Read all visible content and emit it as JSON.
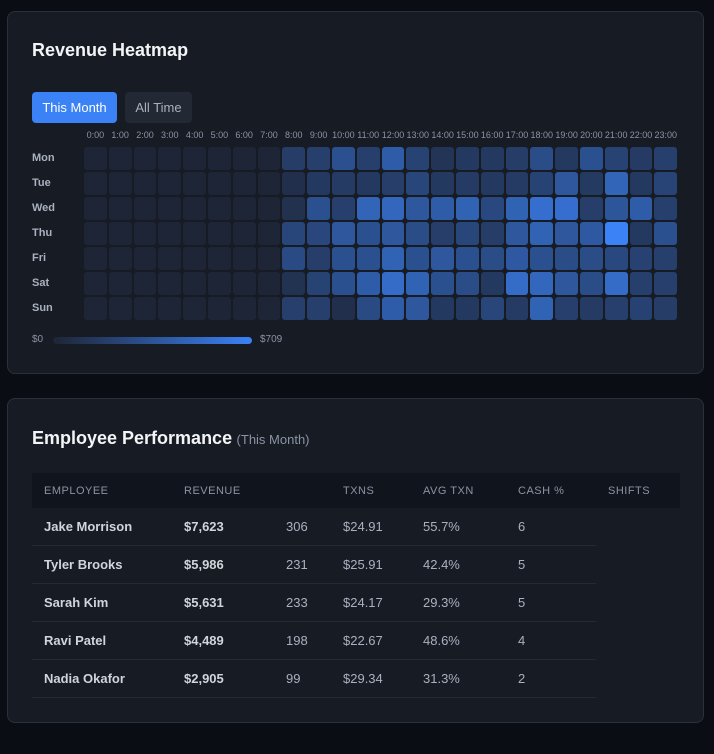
{
  "chart_data": {
    "type": "heatmap",
    "title": "Revenue Heatmap",
    "x": [
      "0:00",
      "1:00",
      "2:00",
      "3:00",
      "4:00",
      "5:00",
      "6:00",
      "7:00",
      "8:00",
      "9:00",
      "10:00",
      "11:00",
      "12:00",
      "13:00",
      "14:00",
      "15:00",
      "16:00",
      "17:00",
      "18:00",
      "19:00",
      "20:00",
      "21:00",
      "22:00",
      "23:00"
    ],
    "categories": [
      "Mon",
      "Tue",
      "Wed",
      "Thu",
      "Fri",
      "Sat",
      "Sun"
    ],
    "values": [
      [
        0,
        0,
        0,
        0,
        0,
        0,
        0,
        0,
        180,
        200,
        330,
        200,
        420,
        230,
        120,
        150,
        150,
        180,
        300,
        150,
        330,
        230,
        170,
        200
      ],
      [
        0,
        0,
        0,
        0,
        0,
        0,
        0,
        0,
        80,
        150,
        170,
        150,
        190,
        250,
        150,
        170,
        150,
        170,
        230,
        380,
        160,
        480,
        150,
        240
      ],
      [
        0,
        0,
        0,
        0,
        0,
        0,
        0,
        0,
        90,
        330,
        200,
        480,
        500,
        380,
        420,
        470,
        270,
        470,
        560,
        560,
        190,
        370,
        420,
        200
      ],
      [
        0,
        0,
        0,
        0,
        0,
        0,
        0,
        0,
        250,
        260,
        380,
        330,
        380,
        300,
        190,
        250,
        180,
        380,
        470,
        380,
        400,
        709,
        150,
        330
      ],
      [
        0,
        0,
        0,
        0,
        0,
        0,
        0,
        0,
        280,
        190,
        330,
        330,
        470,
        330,
        380,
        330,
        300,
        400,
        330,
        300,
        300,
        270,
        220,
        200
      ],
      [
        0,
        0,
        0,
        0,
        0,
        0,
        0,
        0,
        100,
        230,
        330,
        420,
        540,
        470,
        330,
        300,
        150,
        540,
        500,
        380,
        300,
        540,
        200,
        200
      ],
      [
        0,
        0,
        0,
        0,
        0,
        0,
        0,
        0,
        200,
        200,
        80,
        280,
        420,
        380,
        150,
        150,
        250,
        170,
        470,
        200,
        170,
        200,
        220,
        180
      ]
    ],
    "zlim": [
      0,
      709
    ],
    "zticks": [
      {
        "value": 0,
        "label": "$0"
      },
      {
        "value": 709,
        "label": "$709"
      }
    ],
    "colorscale": [
      "#1e2536",
      "#3b82f6"
    ]
  },
  "tabs": [
    "This Month",
    "All Time"
  ],
  "table": {
    "title": "Employee Performance",
    "subtitle": "(This Month)",
    "columns": [
      "EMPLOYEE",
      "REVENUE",
      "TXNS",
      "AVG TXN",
      "CASH %",
      "SHIFTS"
    ],
    "rows": [
      [
        "Jake Morrison",
        "$7,623",
        "306",
        "$24.91",
        "55.7%",
        "6"
      ],
      [
        "Tyler Brooks",
        "$5,986",
        "231",
        "$25.91",
        "42.4%",
        "5"
      ],
      [
        "Sarah Kim",
        "$5,631",
        "233",
        "$24.17",
        "29.3%",
        "5"
      ],
      [
        "Ravi Patel",
        "$4,489",
        "198",
        "$22.67",
        "48.6%",
        "4"
      ],
      [
        "Nadia Okafor",
        "$2,905",
        "99",
        "$29.34",
        "31.3%",
        "2"
      ]
    ]
  }
}
